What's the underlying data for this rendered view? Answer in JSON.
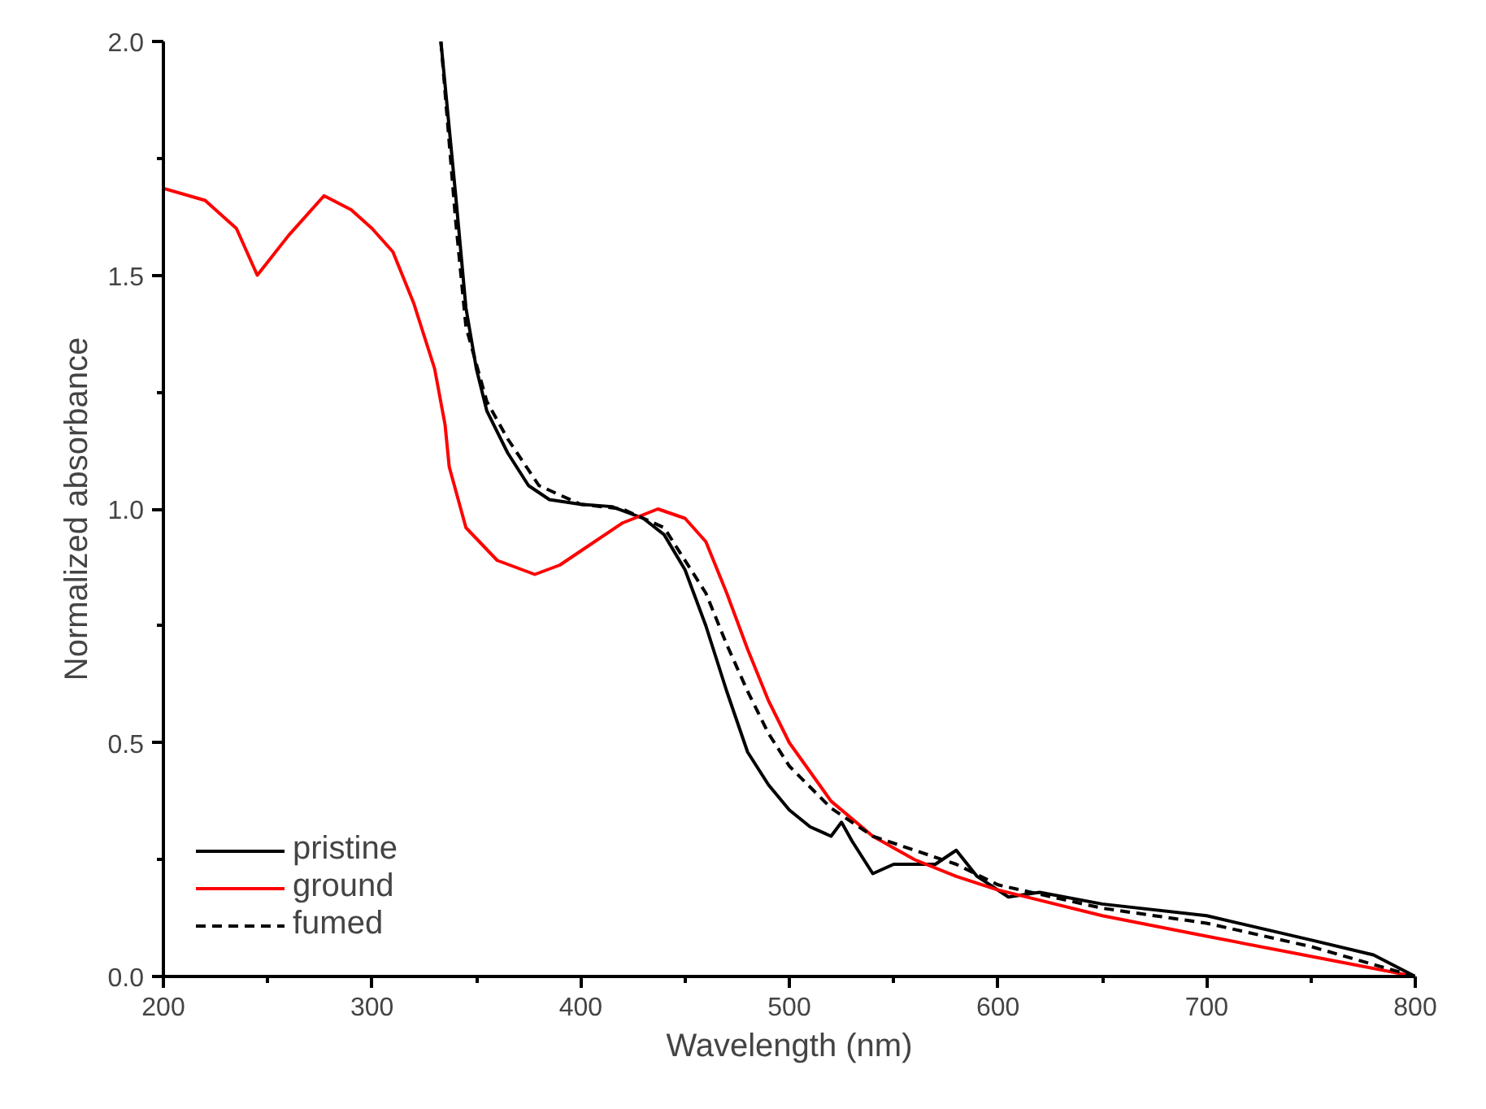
{
  "chart_data": {
    "type": "line",
    "xlabel": "Wavelength (nm)",
    "ylabel": "Normalized absorbance",
    "xlim": [
      200,
      800
    ],
    "ylim": [
      0,
      2.0
    ],
    "xticks": [
      200,
      300,
      400,
      500,
      600,
      700,
      800
    ],
    "yticks": [
      {
        "value": 0,
        "label": "0.0"
      },
      0.5,
      {
        "value": 1,
        "label": "1.0"
      },
      1.5,
      {
        "value": 2,
        "label": "2.0"
      }
    ],
    "grid": false,
    "legend": "bottom left",
    "marker": "none",
    "series": [
      {
        "name": "pristine",
        "color": "#000000",
        "line_style": "solid",
        "x": [
          333,
          340,
          345,
          350,
          355,
          365,
          375,
          385,
          400,
          415,
          430,
          440,
          450,
          460,
          470,
          480,
          490,
          500,
          510,
          520,
          525,
          530,
          540,
          550,
          570,
          580,
          590,
          605,
          620,
          650,
          700,
          750,
          780,
          800
        ],
        "values": [
          2.0,
          1.675,
          1.43,
          1.3,
          1.21,
          1.12,
          1.05,
          1.02,
          1.01,
          1.005,
          0.98,
          0.945,
          0.87,
          0.75,
          0.61,
          0.48,
          0.41,
          0.356,
          0.32,
          0.3,
          0.33,
          0.29,
          0.22,
          0.24,
          0.24,
          0.27,
          0.214,
          0.17,
          0.18,
          0.155,
          0.13,
          0.078,
          0.046,
          0
        ]
      },
      {
        "name": "ground",
        "color": "#ff0000",
        "line_style": "solid",
        "x": [
          200,
          220,
          235,
          245,
          260,
          277,
          290,
          300,
          310,
          320,
          330,
          335,
          337,
          345,
          360,
          378,
          390,
          400,
          420,
          437,
          450,
          460,
          470,
          480,
          490,
          500,
          520,
          540,
          560,
          580,
          600,
          650,
          700,
          750,
          800
        ],
        "values": [
          1.686,
          1.66,
          1.6,
          1.5,
          1.585,
          1.67,
          1.64,
          1.6,
          1.55,
          1.44,
          1.3,
          1.18,
          1.09,
          0.96,
          0.89,
          0.86,
          0.88,
          0.91,
          0.97,
          1.0,
          0.98,
          0.93,
          0.82,
          0.7,
          0.59,
          0.5,
          0.375,
          0.3,
          0.25,
          0.214,
          0.185,
          0.13,
          0.086,
          0.043,
          0
        ]
      },
      {
        "name": "fumed",
        "color": "#000000",
        "line_style": "dashed",
        "x": [
          333,
          340,
          345,
          355,
          365,
          380,
          400,
          420,
          440,
          460,
          470,
          480,
          490,
          500,
          520,
          540,
          560,
          580,
          600,
          650,
          700,
          750,
          800
        ],
        "values": [
          2.0,
          1.62,
          1.39,
          1.23,
          1.15,
          1.05,
          1.01,
          1.0,
          0.96,
          0.82,
          0.71,
          0.61,
          0.52,
          0.45,
          0.36,
          0.3,
          0.27,
          0.24,
          0.196,
          0.146,
          0.114,
          0.064,
          0
        ]
      }
    ]
  }
}
